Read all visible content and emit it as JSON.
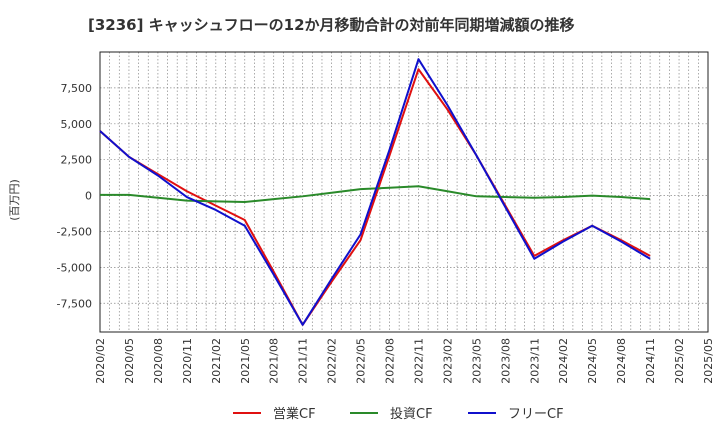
{
  "chart_data": {
    "type": "line",
    "title": "[3236]  キャッシュフローの12か月移動合計の対前年同期増減額の推移",
    "ylabel": "(百万円)",
    "xlabel": "",
    "categories": [
      "2020/02",
      "2020/05",
      "2020/08",
      "2020/11",
      "2021/02",
      "2021/05",
      "2021/08",
      "2021/11",
      "2022/02",
      "2022/05",
      "2022/08",
      "2022/11",
      "2023/02",
      "2023/05",
      "2023/08",
      "2023/11",
      "2024/02",
      "2024/05",
      "2024/08",
      "2024/11",
      "2025/02",
      "2025/05"
    ],
    "ylim": [
      -9500,
      10000
    ],
    "yticks": [
      7500,
      5000,
      2500,
      0,
      -2500,
      -5000,
      -7500
    ],
    "ytick_labels": [
      "7,500",
      "5,000",
      "2,500",
      "0",
      "-2,500",
      "-5,000",
      "-7,500"
    ],
    "grid": true,
    "legend_position": "bottom",
    "series": [
      {
        "name": "営業CF",
        "color": "#e01010",
        "values": [
          4500,
          2700,
          1500,
          300,
          -700,
          -1700,
          -5300,
          -9000,
          -6000,
          -3100,
          2800,
          8800,
          6000,
          2800,
          -700,
          -4200,
          -3100,
          -2100,
          -3100,
          -4200,
          null,
          null
        ]
      },
      {
        "name": "投資CF",
        "color": "#2a8a2a",
        "values": [
          50,
          50,
          -150,
          -350,
          -400,
          -450,
          -250,
          -50,
          200,
          450,
          550,
          650,
          300,
          -50,
          -100,
          -150,
          -100,
          0,
          -100,
          -250,
          null,
          null
        ]
      },
      {
        "name": "フリーCF",
        "color": "#1010cc",
        "values": [
          4500,
          2700,
          1400,
          -100,
          -1000,
          -2100,
          -5500,
          -9000,
          -5800,
          -2700,
          3200,
          9500,
          6300,
          2800,
          -800,
          -4400,
          -3200,
          -2100,
          -3200,
          -4400,
          null,
          null
        ]
      }
    ]
  }
}
